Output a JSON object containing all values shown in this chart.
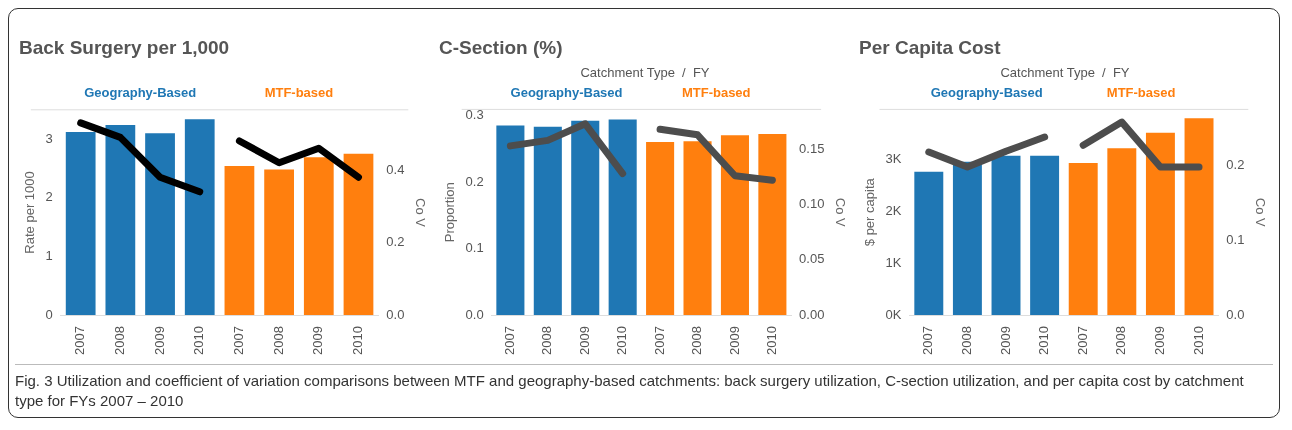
{
  "chart_data": [
    {
      "type": "bar",
      "title": "Back Surgery per 1,000",
      "ylabel": "Rate per 1000",
      "y2label": "Co V",
      "categories": [
        "2007",
        "2008",
        "2009",
        "2010",
        "2007",
        "2008",
        "2009",
        "2010"
      ],
      "series": [
        {
          "name": "Geography-Based",
          "color": "#1f77b4",
          "values": [
            3.12,
            3.24,
            3.1,
            3.34,
            null,
            null,
            null,
            null
          ]
        },
        {
          "name": "MTF-based",
          "color": "#ff7f0e",
          "values": [
            null,
            null,
            null,
            null,
            2.54,
            2.48,
            2.69,
            2.75
          ]
        },
        {
          "type": "line",
          "axis": "y2",
          "color": "#000000",
          "values": [
            0.53,
            0.49,
            0.38,
            0.34,
            null,
            null,
            null,
            null
          ]
        },
        {
          "type": "line",
          "axis": "y2",
          "color": "#000000",
          "values": [
            null,
            null,
            null,
            null,
            0.48,
            0.42,
            0.46,
            0.38
          ]
        }
      ],
      "ylim": [
        0,
        3.5
      ],
      "yticks": [
        0,
        1,
        2,
        3
      ],
      "y2lim": [
        0,
        0.566
      ],
      "y2ticks": [
        {
          "value": 0,
          "label": "0.0"
        },
        {
          "value": 0.2,
          "label": "0.2"
        },
        {
          "value": 0.4,
          "label": "0.4"
        }
      ],
      "grid": false,
      "legend": false,
      "marker": "none",
      "annotations": [
        "Fig. 3 Utilization and coefficient of variation comparisons between MTF and geography-based catchments: back surgery utilization, C-section utilization, and per capita cost by catchment type for FYs 2007 – 2010"
      ]
    },
    {
      "type": "bar",
      "title": "C-Section (%)",
      "xlabel": "Catchment Type  /  FY",
      "ylabel": "Proportion",
      "y2label": "Co V",
      "categories": [
        "2007",
        "2008",
        "2009",
        "2010",
        "2007",
        "2008",
        "2009",
        "2010"
      ],
      "series": [
        {
          "name": "Geography-Based",
          "color": "#1f77b4",
          "values": [
            0.285,
            0.283,
            0.292,
            0.294,
            null,
            null,
            null,
            null
          ]
        },
        {
          "name": "MTF-based",
          "color": "#ff7f0e",
          "values": [
            null,
            null,
            null,
            null,
            0.26,
            0.261,
            0.27,
            0.272
          ]
        },
        {
          "type": "line",
          "axis": "y2",
          "color": "#4d4d4d",
          "values": [
            0.153,
            0.158,
            0.173,
            0.128,
            null,
            null,
            null,
            null
          ]
        },
        {
          "type": "line",
          "axis": "y2",
          "color": "#4d4d4d",
          "values": [
            null,
            null,
            null,
            null,
            0.168,
            0.163,
            0.126,
            0.122
          ]
        }
      ],
      "ylim": [
        0,
        0.309
      ],
      "yticks": [
        {
          "value": 0,
          "label": "0.0"
        },
        {
          "value": 0.1,
          "label": "0.1"
        },
        {
          "value": 0.2,
          "label": "0.2"
        },
        {
          "value": 0.3,
          "label": "0.3"
        }
      ],
      "y2lim": [
        0,
        0.186
      ],
      "y2ticks": [
        {
          "value": 0,
          "label": "0.00"
        },
        {
          "value": 0.05,
          "label": "0.05"
        },
        {
          "value": 0.1,
          "label": "0.10"
        },
        {
          "value": 0.15,
          "label": "0.15"
        }
      ],
      "grid": false,
      "legend": false,
      "marker": "none"
    },
    {
      "type": "bar",
      "title": "Per Capita Cost",
      "xlabel": "Catchment Type  /  FY",
      "ylabel": "$ per capita",
      "y2label": "Co V",
      "categories": [
        "2007",
        "2008",
        "2009",
        "2010",
        "2007",
        "2008",
        "2009",
        "2010"
      ],
      "series": [
        {
          "name": "Geography-Based",
          "color": "#1f77b4",
          "values": [
            2760,
            2950,
            3070,
            3070,
            null,
            null,
            null,
            null
          ]
        },
        {
          "name": "MTF-based",
          "color": "#ff7f0e",
          "values": [
            null,
            null,
            null,
            null,
            2930,
            3210,
            3510,
            3790
          ]
        },
        {
          "type": "line",
          "axis": "y2",
          "color": "#4d4d4d",
          "values": [
            0.218,
            0.198,
            0.219,
            0.238,
            null,
            null,
            null,
            null
          ]
        },
        {
          "type": "line",
          "axis": "y2",
          "color": "#4d4d4d",
          "values": [
            null,
            null,
            null,
            null,
            0.227,
            0.258,
            0.198,
            0.198
          ]
        }
      ],
      "ylim": [
        0,
        3960
      ],
      "yticks": [
        {
          "value": 0,
          "label": "0K"
        },
        {
          "value": 1000,
          "label": "1K"
        },
        {
          "value": 2000,
          "label": "2K"
        },
        {
          "value": 3000,
          "label": "3K"
        }
      ],
      "y2lim": [
        0,
        0.275
      ],
      "y2ticks": [
        {
          "value": 0,
          "label": "0.0"
        },
        {
          "value": 0.1,
          "label": "0.1"
        },
        {
          "value": 0.2,
          "label": "0.2"
        }
      ],
      "grid": false,
      "legend": false,
      "marker": "none"
    }
  ]
}
